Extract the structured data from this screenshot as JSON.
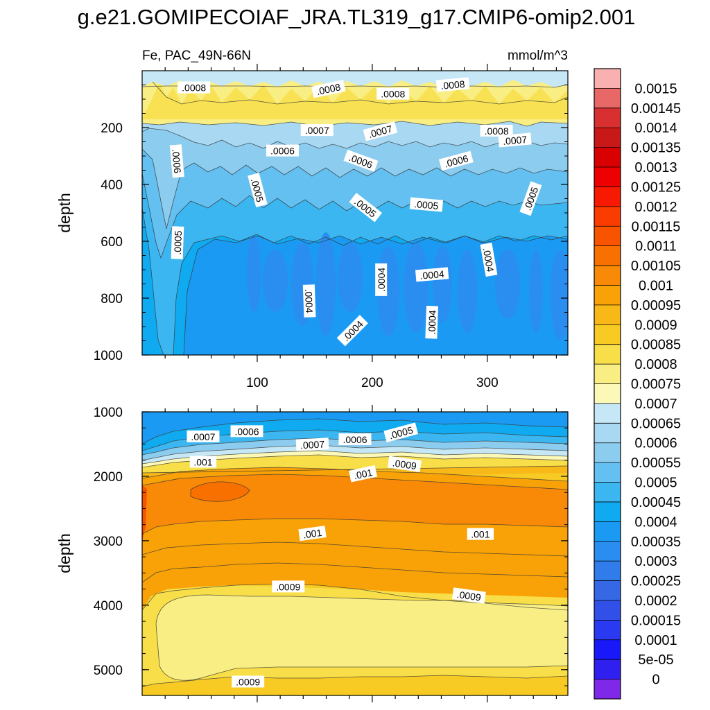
{
  "title": "g.e21.GOMIPECOIAF_JRA.TL319_g17.CMIP6-omip2.001",
  "chart_data": {
    "type": "heatmap",
    "subtitle_left": "Fe, PAC_49N-66N",
    "subtitle_right": "mmol/m^3",
    "x_range": [
      0,
      370
    ],
    "x_ticks": [
      "100",
      "200",
      "300"
    ],
    "panels": [
      {
        "ylabel": "depth",
        "y_range": [
          0,
          1000
        ],
        "y_ticks": [
          "200",
          "400",
          "600",
          "800",
          "1000"
        ],
        "contour_labels": [
          {
            "text": ".0008",
            "x": 45,
            "y": 60,
            "rot": 0
          },
          {
            "text": ".0008",
            "x": 162,
            "y": 65,
            "rot": -12
          },
          {
            "text": ".0008",
            "x": 218,
            "y": 82,
            "rot": 0
          },
          {
            "text": ".0008",
            "x": 270,
            "y": 50,
            "rot": -5
          },
          {
            "text": ".0008",
            "x": 308,
            "y": 212,
            "rot": 0
          },
          {
            "text": ".0007",
            "x": 152,
            "y": 210,
            "rot": 0
          },
          {
            "text": ".0007",
            "x": 207,
            "y": 214,
            "rot": -15
          },
          {
            "text": ".0007",
            "x": 324,
            "y": 245,
            "rot": -5
          },
          {
            "text": ".0006",
            "x": 122,
            "y": 282,
            "rot": 0
          },
          {
            "text": ".0006",
            "x": 190,
            "y": 318,
            "rot": 20
          },
          {
            "text": ".0006",
            "x": 273,
            "y": 318,
            "rot": -15
          },
          {
            "text": ".0006",
            "x": 30,
            "y": 318,
            "rot": 85
          },
          {
            "text": ".0005",
            "x": 100,
            "y": 420,
            "rot": 75
          },
          {
            "text": ".0005",
            "x": 194,
            "y": 482,
            "rot": 38
          },
          {
            "text": ".0005",
            "x": 247,
            "y": 472,
            "rot": 5
          },
          {
            "text": ".0005",
            "x": 338,
            "y": 450,
            "rot": -70
          },
          {
            "text": ".0005",
            "x": 31,
            "y": 605,
            "rot": -88
          },
          {
            "text": ".0004",
            "x": 145,
            "y": 810,
            "rot": 88
          },
          {
            "text": ".0004",
            "x": 183,
            "y": 915,
            "rot": -45
          },
          {
            "text": ".0004",
            "x": 208,
            "y": 735,
            "rot": -90
          },
          {
            "text": ".0004",
            "x": 252,
            "y": 718,
            "rot": -5
          },
          {
            "text": ".0004",
            "x": 252,
            "y": 885,
            "rot": -88
          },
          {
            "text": ".0004",
            "x": 301,
            "y": 665,
            "rot": 80
          }
        ]
      },
      {
        "ylabel": "depth",
        "y_range": [
          1000,
          5400
        ],
        "y_ticks": [
          "1000",
          "2000",
          "3000",
          "4000",
          "5000"
        ],
        "contour_labels": [
          {
            "text": ".0007",
            "x": 53,
            "y": 1385,
            "rot": 0
          },
          {
            "text": ".0006",
            "x": 91,
            "y": 1305,
            "rot": 0
          },
          {
            "text": ".0007",
            "x": 148,
            "y": 1510,
            "rot": -3
          },
          {
            "text": ".0006",
            "x": 185,
            "y": 1430,
            "rot": 0
          },
          {
            "text": ".0005",
            "x": 225,
            "y": 1325,
            "rot": -15
          },
          {
            "text": ".001",
            "x": 53,
            "y": 1780,
            "rot": 0
          },
          {
            "text": ".001",
            "x": 192,
            "y": 1965,
            "rot": -12
          },
          {
            "text": ".0009",
            "x": 228,
            "y": 1815,
            "rot": 8
          },
          {
            "text": ".001",
            "x": 148,
            "y": 2890,
            "rot": -8
          },
          {
            "text": ".001",
            "x": 294,
            "y": 2900,
            "rot": 0
          },
          {
            "text": ".0009",
            "x": 127,
            "y": 3715,
            "rot": 0
          },
          {
            "text": ".0009",
            "x": 284,
            "y": 3855,
            "rot": 8
          },
          {
            "text": ".0009",
            "x": 92,
            "y": 5190,
            "rot": 0
          }
        ]
      }
    ],
    "colorbar": {
      "labels": [
        "0.0015",
        "0.00145",
        "0.0014",
        "0.00135",
        "0.0013",
        "0.00125",
        "0.0012",
        "0.00115",
        "0.0011",
        "0.00105",
        "0.001",
        "0.00095",
        "0.0009",
        "0.00085",
        "0.0008",
        "0.00075",
        "0.0007",
        "0.00065",
        "0.0006",
        "0.00055",
        "0.0005",
        "0.00045",
        "0.0004",
        "0.00035",
        "0.0003",
        "0.00025",
        "0.0002",
        "0.00015",
        "0.0001",
        "5e-05",
        "0"
      ],
      "colors": [
        "#f8b0b0",
        "#e86868",
        "#d83030",
        "#c81818",
        "#d80000",
        "#ec0000",
        "#f81a00",
        "#fa3c00",
        "#f85400",
        "#f87000",
        "#f88a08",
        "#f8a208",
        "#f8b818",
        "#f8ca24",
        "#f8de48",
        "#f8ee84",
        "#fcf8b8",
        "#c6e8f6",
        "#a8d8f2",
        "#8cccef",
        "#64c0f0",
        "#3cb6f0",
        "#10aaf0",
        "#1a9af2",
        "#2a8ef0",
        "#307cea",
        "#3668e6",
        "#3050e8",
        "#2a3af0",
        "#1818f8",
        "#3020f0",
        "#8028e8"
      ]
    }
  }
}
